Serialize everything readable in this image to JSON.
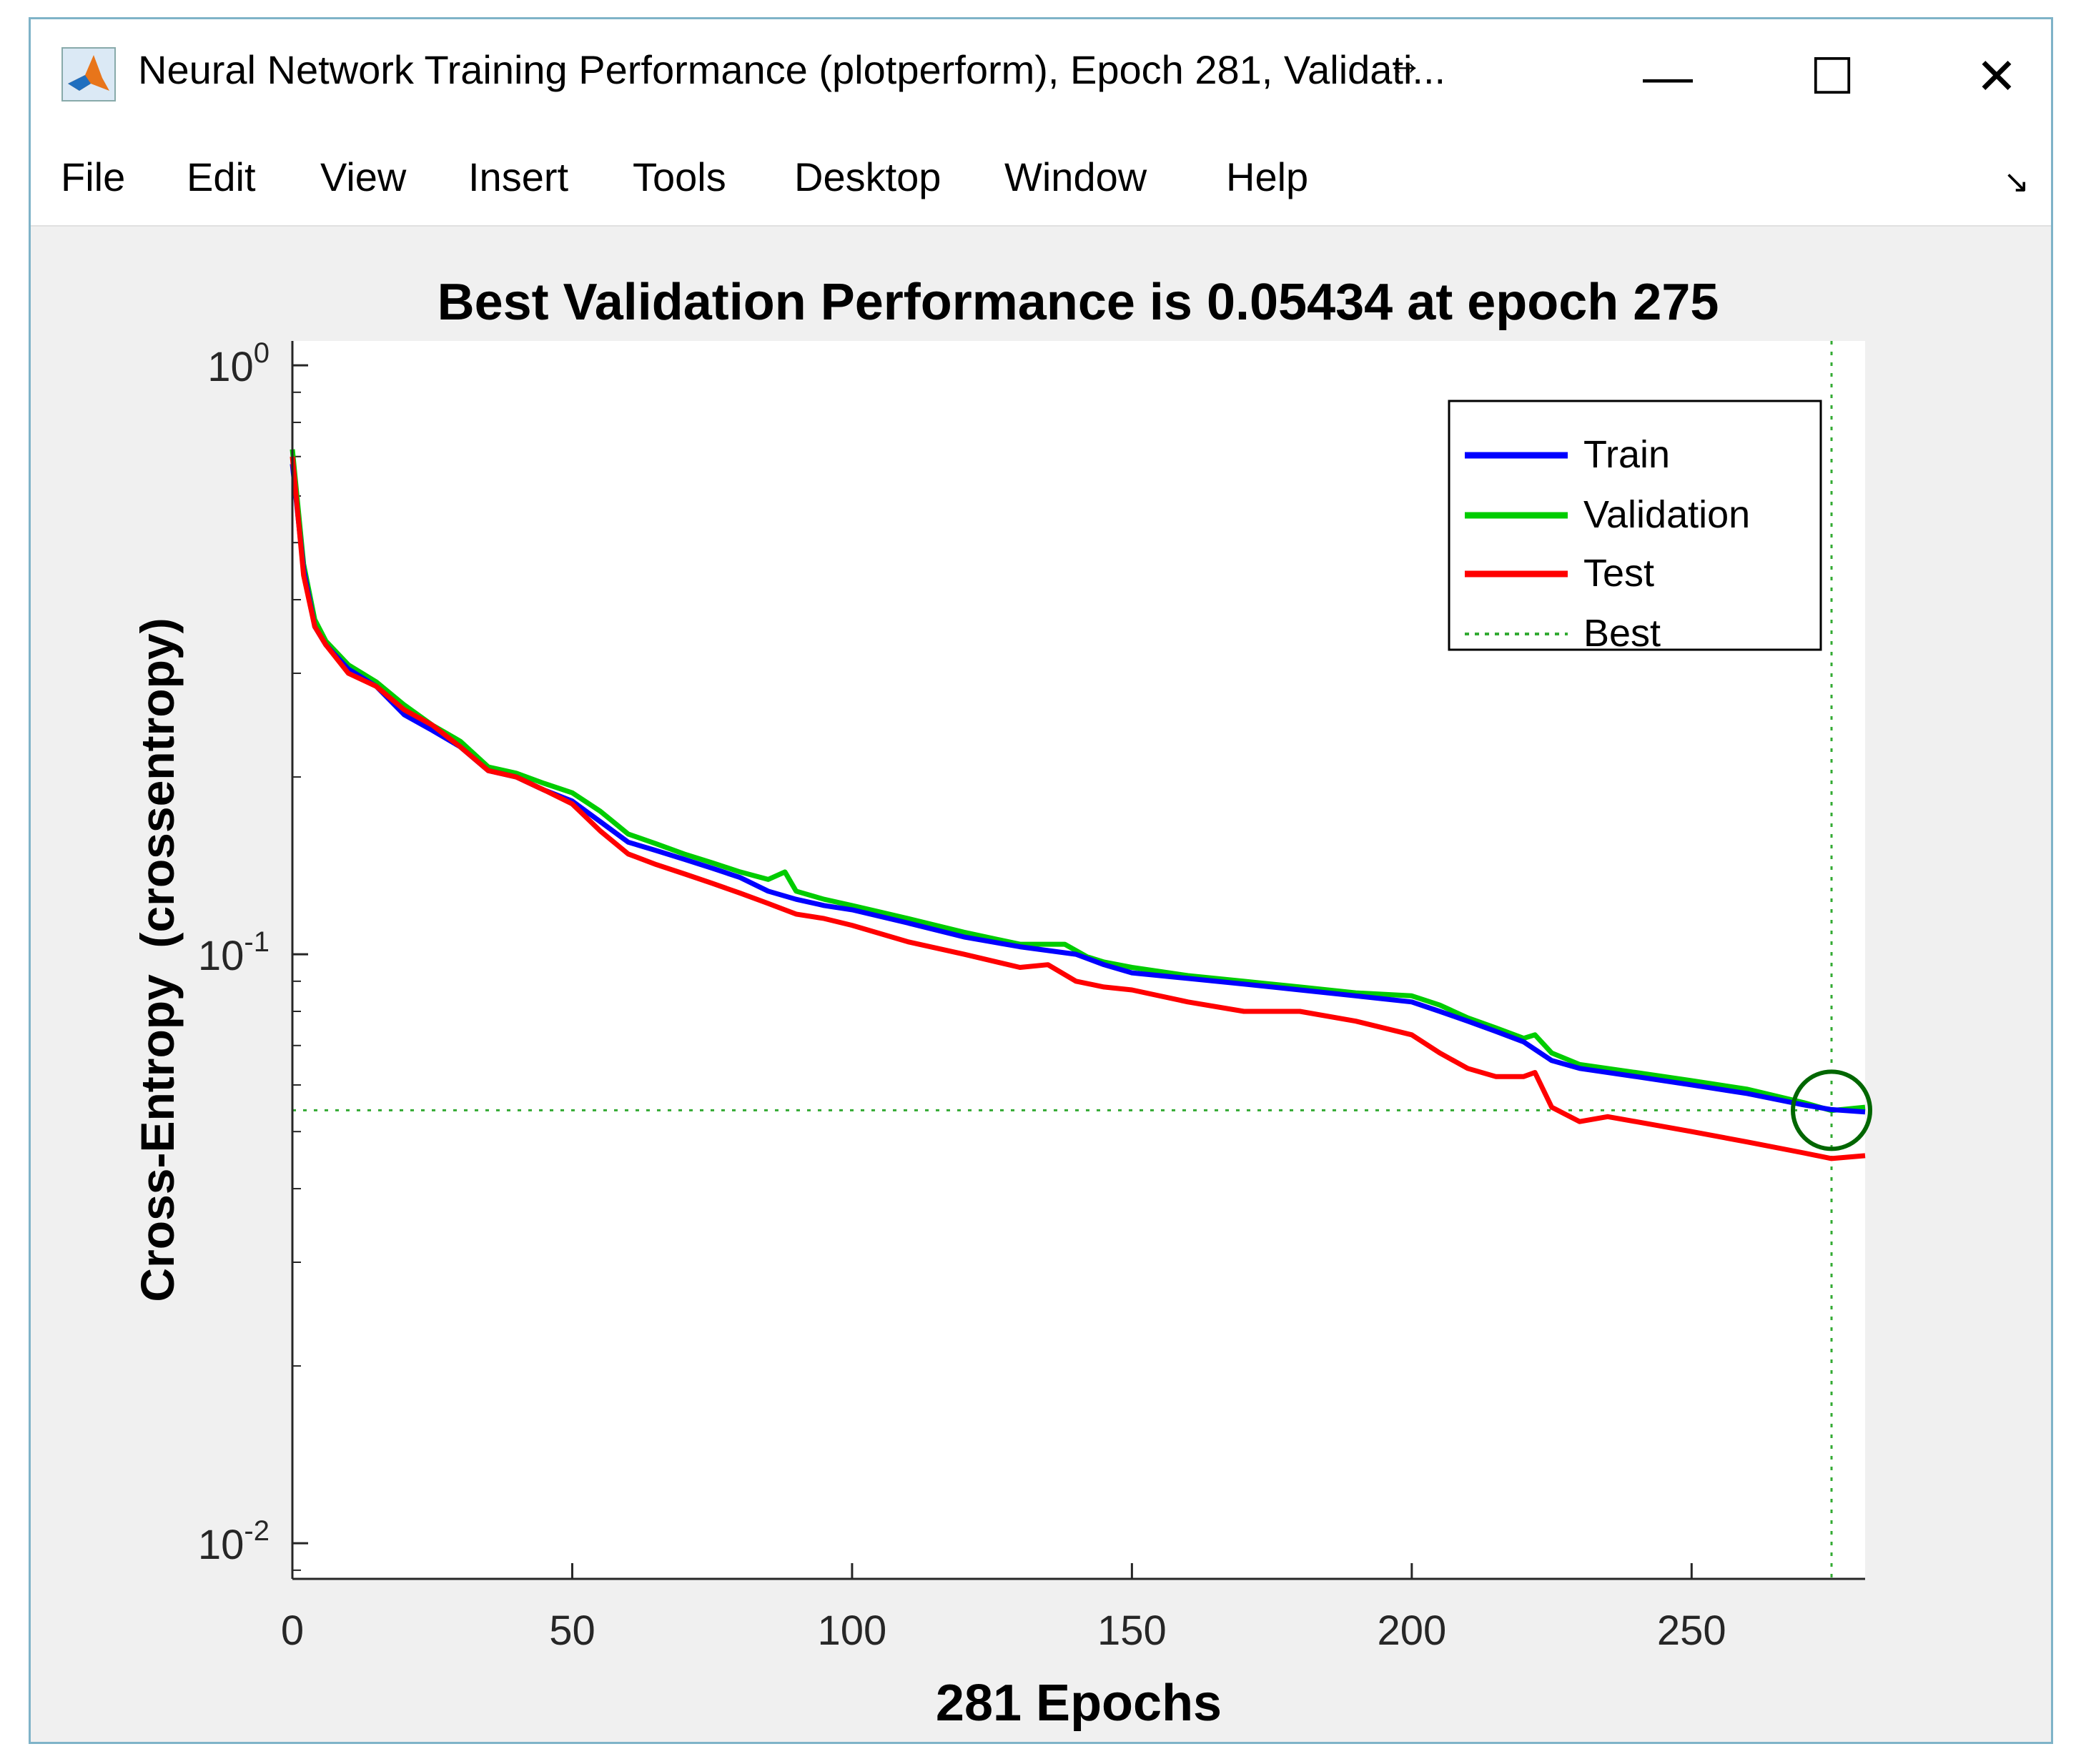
{
  "window": {
    "title": "Neural Network Training Performance (plotperform), Epoch 281, Validati...",
    "resize_cursor": "↔",
    "minimize_glyph": "—",
    "maximize_glyph": "☐",
    "close_glyph": "✕",
    "dock_glyph": "↘"
  },
  "menu": {
    "items": [
      {
        "label": "File"
      },
      {
        "label": "Edit"
      },
      {
        "label": "View"
      },
      {
        "label": "Insert"
      },
      {
        "label": "Tools"
      },
      {
        "label": "Desktop"
      },
      {
        "label": "Window"
      },
      {
        "label": "Help"
      }
    ]
  },
  "colors": {
    "train": "#0000ff",
    "validation": "#00cc00",
    "test": "#ff0000",
    "best": "#33aa33",
    "circle": "#006600"
  },
  "chart_data": {
    "type": "line",
    "title": "Best Validation Performance is 0.05434 at epoch 275",
    "xlabel": "281 Epochs",
    "ylabel": "Cross-Entropy  (crossentropy)",
    "yscale": "log",
    "xlim": [
      0,
      281
    ],
    "ylim": [
      0.0087,
      1.1
    ],
    "x_ticks": [
      0,
      50,
      100,
      150,
      200,
      250
    ],
    "x_tick_labels": [
      "0",
      "50",
      "100",
      "150",
      "200",
      "250"
    ],
    "y_ticks": [
      {
        "value": 1,
        "base": "10",
        "exp": "0"
      },
      {
        "value": 0.1,
        "base": "10",
        "exp": "-1"
      },
      {
        "value": 0.01,
        "base": "10",
        "exp": "-2"
      }
    ],
    "legend": {
      "position": "top-right",
      "entries": [
        "Train",
        "Validation",
        "Test",
        "Best"
      ]
    },
    "best": {
      "epoch": 275,
      "value": 0.05434
    },
    "series": [
      {
        "name": "Train",
        "x": [
          0,
          2,
          4,
          6,
          10,
          15,
          20,
          25,
          30,
          35,
          40,
          45,
          50,
          55,
          60,
          65,
          70,
          75,
          80,
          85,
          90,
          95,
          100,
          110,
          120,
          130,
          140,
          145,
          150,
          160,
          170,
          180,
          190,
          200,
          205,
          210,
          215,
          220,
          225,
          230,
          240,
          250,
          260,
          270,
          275,
          281
        ],
        "y": [
          0.68,
          0.45,
          0.36,
          0.335,
          0.305,
          0.285,
          0.255,
          0.24,
          0.225,
          0.205,
          0.2,
          0.19,
          0.182,
          0.168,
          0.155,
          0.15,
          0.145,
          0.14,
          0.135,
          0.128,
          0.124,
          0.121,
          0.119,
          0.113,
          0.107,
          0.103,
          0.1,
          0.096,
          0.093,
          0.091,
          0.089,
          0.087,
          0.085,
          0.083,
          0.08,
          0.077,
          0.074,
          0.071,
          0.066,
          0.064,
          0.062,
          0.06,
          0.058,
          0.0555,
          0.0545,
          0.054
        ]
      },
      {
        "name": "Validation",
        "x": [
          0,
          2,
          4,
          6,
          10,
          15,
          20,
          25,
          30,
          35,
          40,
          45,
          50,
          55,
          60,
          65,
          70,
          75,
          80,
          85,
          88,
          90,
          95,
          100,
          110,
          120,
          130,
          138,
          142,
          145,
          150,
          160,
          170,
          180,
          190,
          200,
          205,
          210,
          215,
          220,
          222,
          225,
          230,
          240,
          250,
          260,
          270,
          275,
          281
        ],
        "y": [
          0.72,
          0.46,
          0.37,
          0.34,
          0.31,
          0.29,
          0.265,
          0.245,
          0.23,
          0.208,
          0.203,
          0.195,
          0.188,
          0.175,
          0.16,
          0.154,
          0.148,
          0.143,
          0.138,
          0.134,
          0.138,
          0.128,
          0.124,
          0.121,
          0.115,
          0.109,
          0.104,
          0.104,
          0.099,
          0.097,
          0.095,
          0.092,
          0.09,
          0.088,
          0.086,
          0.085,
          0.082,
          0.078,
          0.075,
          0.072,
          0.073,
          0.068,
          0.065,
          0.063,
          0.061,
          0.059,
          0.056,
          0.0543,
          0.055
        ]
      },
      {
        "name": "Test",
        "x": [
          0,
          2,
          4,
          6,
          10,
          15,
          20,
          25,
          30,
          35,
          40,
          45,
          50,
          55,
          60,
          65,
          70,
          75,
          80,
          85,
          90,
          95,
          100,
          110,
          120,
          130,
          135,
          140,
          145,
          150,
          160,
          170,
          180,
          190,
          200,
          205,
          210,
          215,
          220,
          222,
          225,
          230,
          235,
          240,
          250,
          260,
          270,
          275,
          281
        ],
        "y": [
          0.7,
          0.44,
          0.36,
          0.335,
          0.3,
          0.285,
          0.26,
          0.245,
          0.225,
          0.205,
          0.2,
          0.19,
          0.18,
          0.162,
          0.148,
          0.142,
          0.137,
          0.132,
          0.127,
          0.122,
          0.117,
          0.115,
          0.112,
          0.105,
          0.1,
          0.095,
          0.096,
          0.09,
          0.088,
          0.087,
          0.083,
          0.08,
          0.08,
          0.077,
          0.073,
          0.068,
          0.064,
          0.062,
          0.062,
          0.063,
          0.055,
          0.052,
          0.053,
          0.052,
          0.05,
          0.048,
          0.046,
          0.045,
          0.0455
        ]
      }
    ]
  }
}
